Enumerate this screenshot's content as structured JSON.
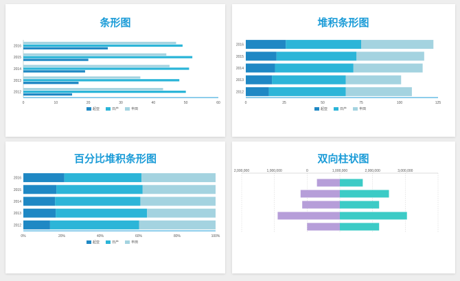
{
  "colors": {
    "s1": "#1f88c4",
    "s2": "#2cb5d8",
    "s3": "#a4d3e0",
    "left": "#b69ed9",
    "right": "#3ccbc6",
    "axis": "#1a9bd7"
  },
  "chart_data": [
    {
      "type": "bar",
      "subtype": "grouped-horizontal",
      "title": "条形图",
      "categories": [
        "2012",
        "2013",
        "2014",
        "2015",
        "2016"
      ],
      "xlim": [
        0,
        60
      ],
      "xticks": [
        "0",
        "10",
        "20",
        "30",
        "40",
        "50",
        "60"
      ],
      "legend_position": "bottom",
      "series": [
        {
          "name": "起亚",
          "values": [
            15,
            17,
            19,
            20,
            26
          ]
        },
        {
          "name": "日产",
          "values": [
            50,
            48,
            51,
            52,
            49
          ]
        },
        {
          "name": "丰田",
          "values": [
            43,
            36,
            45,
            44,
            47
          ]
        }
      ]
    },
    {
      "type": "bar",
      "subtype": "stacked-horizontal",
      "title": "堆积条形图",
      "categories": [
        "2012",
        "2013",
        "2014",
        "2015",
        "2016"
      ],
      "xlim": [
        0,
        125
      ],
      "xticks": [
        "0",
        "25",
        "50",
        "75",
        "100",
        "125"
      ],
      "legend_position": "bottom",
      "series": [
        {
          "name": "起亚",
          "values": [
            15,
            17,
            19,
            20,
            26
          ]
        },
        {
          "name": "日产",
          "values": [
            50,
            48,
            51,
            52,
            49
          ]
        },
        {
          "name": "丰田",
          "values": [
            43,
            36,
            45,
            44,
            47
          ]
        }
      ]
    },
    {
      "type": "bar",
      "subtype": "percent-stacked-horizontal",
      "title": "百分比堆积条形图",
      "categories": [
        "2012",
        "2013",
        "2014",
        "2015",
        "2016"
      ],
      "xlim": [
        0,
        100
      ],
      "xticks": [
        "0%",
        "20%",
        "40%",
        "60%",
        "80%",
        "100%"
      ],
      "legend_position": "bottom",
      "series": [
        {
          "name": "起亚",
          "values": [
            15,
            17,
            19,
            20,
            26
          ]
        },
        {
          "name": "日产",
          "values": [
            50,
            48,
            51,
            52,
            49
          ]
        },
        {
          "name": "丰田",
          "values": [
            43,
            36,
            45,
            44,
            47
          ]
        }
      ]
    },
    {
      "type": "bar",
      "subtype": "diverging-horizontal",
      "title": "双向柱状图",
      "xlim": [
        -3000000,
        3000000
      ],
      "xticks": [
        "2,000,000",
        "1,000,000",
        "0",
        "1,000,000",
        "2,000,000",
        "3,000,000"
      ],
      "left_values": [
        700000,
        1200000,
        1150000,
        1900000,
        1000000
      ],
      "right_values": [
        700000,
        1500000,
        1200000,
        2050000,
        1200000
      ]
    }
  ]
}
